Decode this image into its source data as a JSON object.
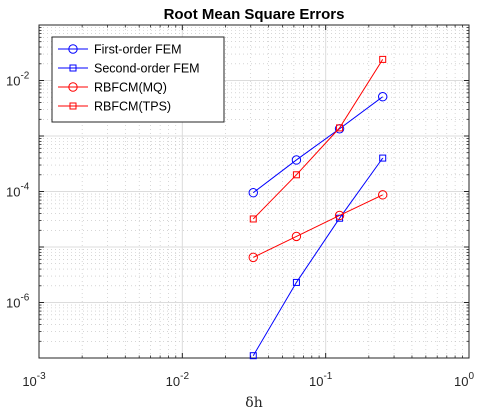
{
  "chart_data": {
    "type": "line",
    "title": "Root Mean Square Errors",
    "xlabel": "δh",
    "ylabel": "",
    "xscale": "log",
    "yscale": "log",
    "xlim": [
      0.001,
      1
    ],
    "ylim": [
      1e-07,
      0.1
    ],
    "grid": true,
    "legend_position": "top-left",
    "x_ticks": [
      {
        "value": 0.001,
        "base": "10",
        "exp": "-3"
      },
      {
        "value": 0.01,
        "base": "10",
        "exp": "-2"
      },
      {
        "value": 0.1,
        "base": "10",
        "exp": "-1"
      },
      {
        "value": 1,
        "base": "10",
        "exp": "0"
      }
    ],
    "y_ticks": [
      {
        "value": 1e-06,
        "base": "10",
        "exp": "-6"
      },
      {
        "value": 0.0001,
        "base": "10",
        "exp": "-4"
      },
      {
        "value": 0.01,
        "base": "10",
        "exp": "-2"
      }
    ],
    "series": [
      {
        "name": "First-order FEM",
        "color": "#0000ff",
        "marker": "circle",
        "x": [
          0.03125,
          0.0625,
          0.125,
          0.25
        ],
        "y": [
          9.5e-05,
          0.00037,
          0.00135,
          0.0051
        ]
      },
      {
        "name": "Second-order FEM",
        "color": "#0000ff",
        "marker": "square",
        "x": [
          0.03125,
          0.0625,
          0.125,
          0.25
        ],
        "y": [
          1.1e-07,
          2.3e-06,
          3.3e-05,
          0.0004
        ]
      },
      {
        "name": "RBFCM(MQ)",
        "color": "#ff0000",
        "marker": "circle",
        "x": [
          0.03125,
          0.0625,
          0.125,
          0.25
        ],
        "y": [
          6.5e-06,
          1.55e-05,
          3.7e-05,
          8.7e-05
        ]
      },
      {
        "name": "RBFCM(TPS)",
        "color": "#ff0000",
        "marker": "square",
        "x": [
          0.03125,
          0.0625,
          0.125,
          0.25
        ],
        "y": [
          3.2e-05,
          0.0002,
          0.0014,
          0.024
        ]
      }
    ]
  }
}
